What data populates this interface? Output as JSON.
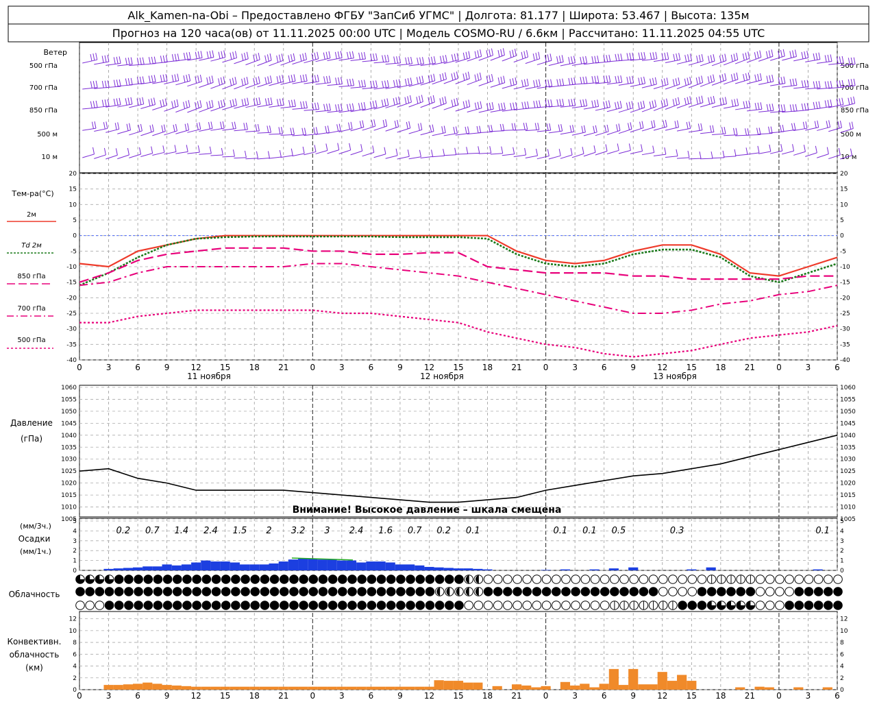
{
  "header": {
    "line1": "Alk_Kamen-na-Obi – Предоставлено ФГБУ \"ЗапСиб УГМС\" | Долгота: 81.177 | Широта: 53.467 | Высота: 135м",
    "line2": "Прогноз на 120 часа(ов) от 11.11.2025 00:00 UTC  | Модель COSMO-RU / 6.6км | Рассчитано: 11.11.2025 04:55 UTC"
  },
  "axis": {
    "hour_labels": [
      "0",
      "3",
      "6",
      "9",
      "12",
      "15",
      "18",
      "21",
      "0",
      "3",
      "6",
      "9",
      "12",
      "15",
      "18",
      "21",
      "0",
      "3",
      "6",
      "9",
      "12",
      "15",
      "18",
      "21",
      "0",
      "3",
      "6"
    ],
    "day_labels": [
      "11 ноября",
      "12 ноября",
      "13 ноября"
    ]
  },
  "wind": {
    "title": "Ветер",
    "level_labels": [
      "500 гПа",
      "700 гПа",
      "850 гПа",
      "500 м",
      "10  м"
    ]
  },
  "temperature": {
    "title": "Тем-ра(°С)",
    "legend": [
      "2м",
      "Td  2м",
      "850 гПа",
      "700 гПа",
      "500 гПа"
    ],
    "tick_labels": [
      "20",
      "15",
      "10",
      "5",
      "0",
      "-5",
      "-10",
      "-15",
      "-20",
      "-25",
      "-30",
      "-35",
      "-40"
    ],
    "colors": {
      "t2m": "#ee3a2a",
      "td2m": "#1a7a1a",
      "t850": "#e8007a",
      "t700": "#e8007a",
      "t500": "#e8007a",
      "zero": "#3355ff"
    }
  },
  "pressure": {
    "title": "Давление",
    "unit": "(гПа)",
    "tick_labels": [
      "1060",
      "1055",
      "1050",
      "1045",
      "1040",
      "1035",
      "1030",
      "1025",
      "1020",
      "1015",
      "1010",
      "1005"
    ],
    "warning": "Внимание! Высокое давление – шкала смещена"
  },
  "precip": {
    "unit3": "(мм/3ч.)",
    "title": "Осадки",
    "unit1": "(мм/1ч.)",
    "tick_labels": [
      "5",
      "4",
      "3",
      "2",
      "1",
      "0"
    ],
    "sum_labels": [
      "0.2",
      "0.7",
      "1.4",
      "2.4",
      "1.5",
      "2",
      "3.2",
      "3",
      "2.4",
      "1.6",
      "0.7",
      "0.2",
      "0.1",
      "0.1",
      "0.1",
      "0.5",
      "0.3",
      "0.1"
    ],
    "colors": {
      "bar": "#1c3fe0",
      "snow": "#22aa22"
    }
  },
  "cloud": {
    "title": "Облачность"
  },
  "convective": {
    "title": [
      "Конвективн.",
      "облачность",
      "(км)"
    ],
    "tick_labels": [
      "12",
      "10",
      "8",
      "6",
      "4",
      "2",
      "0"
    ],
    "color": "#f08a2a"
  },
  "chart_data": [
    {
      "type": "line",
      "title": "Тем-ра(°С)",
      "x_hours": [
        0,
        3,
        6,
        9,
        12,
        15,
        18,
        21,
        24,
        27,
        30,
        33,
        36,
        39,
        42,
        45,
        48,
        51,
        54,
        57,
        60,
        63,
        66,
        69,
        72,
        75,
        78
      ],
      "ylim": [
        -40,
        20
      ],
      "series": [
        {
          "name": "2м",
          "values": [
            -9,
            -10,
            -5,
            -3,
            -1,
            0,
            0,
            0,
            0,
            0,
            0,
            0,
            0,
            0,
            0,
            -5,
            -8,
            -9,
            -8,
            -5,
            -3,
            -3,
            -6,
            -12,
            -13,
            -10,
            -7
          ]
        },
        {
          "name": "Td  2м",
          "values": [
            -16,
            -12,
            -7,
            -3,
            -1,
            -0.5,
            -0.3,
            -0.3,
            -0.3,
            -0.3,
            -0.3,
            -0.5,
            -0.5,
            -0.5,
            -1,
            -6,
            -9,
            -10,
            -9,
            -6,
            -4.5,
            -4.5,
            -7,
            -13,
            -15,
            -12,
            -9
          ]
        },
        {
          "name": "850 гПа",
          "values": [
            -15,
            -12,
            -8,
            -6,
            -5,
            -4,
            -4,
            -4,
            -5,
            -5,
            -6,
            -6,
            -5.5,
            -5.5,
            -10,
            -11,
            -12,
            -12,
            -12,
            -13,
            -13,
            -14,
            -14,
            -14,
            -14,
            -13,
            -13
          ]
        },
        {
          "name": "700 гПа",
          "values": [
            -16,
            -15,
            -12,
            -10,
            -10,
            -10,
            -10,
            -10,
            -9,
            -9,
            -10,
            -11,
            -12,
            -13,
            -15,
            -17,
            -19,
            -21,
            -23,
            -25,
            -25,
            -24,
            -22,
            -21,
            -19,
            -18,
            -16
          ]
        },
        {
          "name": "500 гПа",
          "values": [
            -28,
            -28,
            -26,
            -25,
            -24,
            -24,
            -24,
            -24,
            -24,
            -25,
            -25,
            -26,
            -27,
            -28,
            -31,
            -33,
            -35,
            -36,
            -38,
            -39,
            -38,
            -37,
            -35,
            -33,
            -32,
            -31,
            -29
          ]
        }
      ]
    },
    {
      "type": "line",
      "title": "Давление",
      "x_hours": [
        0,
        3,
        6,
        9,
        12,
        15,
        18,
        21,
        24,
        27,
        30,
        33,
        36,
        39,
        42,
        45,
        48,
        51,
        54,
        57,
        60,
        63,
        66,
        69,
        72,
        75,
        78
      ],
      "ylim": [
        1005,
        1060
      ],
      "series": [
        {
          "name": "Давление",
          "values": [
            1025,
            1026,
            1022,
            1020,
            1017,
            1017,
            1017,
            1017,
            1016,
            1015,
            1014,
            1013,
            1012,
            1012,
            1013,
            1014,
            1017,
            1019,
            1021,
            1023,
            1024,
            1026,
            1028,
            1031,
            1034,
            1037,
            1040
          ]
        }
      ]
    },
    {
      "type": "bar",
      "title": "Осадки",
      "ylim": [
        0,
        5
      ],
      "bars_mm_per_hour": [
        [
          3,
          0.15
        ],
        [
          4,
          0.2
        ],
        [
          5,
          0.25
        ],
        [
          6,
          0.3
        ],
        [
          7,
          0.4
        ],
        [
          8,
          0.4
        ],
        [
          9,
          0.6
        ],
        [
          10,
          0.5
        ],
        [
          11,
          0.6
        ],
        [
          12,
          0.8
        ],
        [
          13,
          1.0
        ],
        [
          14,
          0.9
        ],
        [
          15,
          0.9
        ],
        [
          16,
          0.8
        ],
        [
          17,
          0.6
        ],
        [
          18,
          0.6
        ],
        [
          19,
          0.6
        ],
        [
          20,
          0.7
        ],
        [
          21,
          0.9
        ],
        [
          22,
          1.1
        ],
        [
          23,
          1.2
        ],
        [
          24,
          1.2
        ],
        [
          25,
          1.1
        ],
        [
          26,
          1.1
        ],
        [
          27,
          1.0
        ],
        [
          28,
          1.0
        ],
        [
          29,
          0.8
        ],
        [
          30,
          0.9
        ],
        [
          31,
          0.9
        ],
        [
          32,
          0.8
        ],
        [
          33,
          0.6
        ],
        [
          34,
          0.6
        ],
        [
          35,
          0.5
        ],
        [
          36,
          0.35
        ],
        [
          37,
          0.3
        ],
        [
          38,
          0.25
        ],
        [
          39,
          0.2
        ],
        [
          40,
          0.2
        ],
        [
          41,
          0.15
        ],
        [
          42,
          0.1
        ],
        [
          48,
          0.05
        ],
        [
          50,
          0.1
        ],
        [
          53,
          0.1
        ],
        [
          55,
          0.2
        ],
        [
          57,
          0.3
        ],
        [
          63,
          0.1
        ],
        [
          65,
          0.3
        ],
        [
          76,
          0.1
        ]
      ]
    },
    {
      "type": "bar",
      "title": "Конвективн. облачность (км)",
      "ylim": [
        0,
        13
      ],
      "bars_km": [
        [
          3,
          0.8
        ],
        [
          4,
          0.8
        ],
        [
          5,
          0.9
        ],
        [
          6,
          1.0
        ],
        [
          7,
          1.2
        ],
        [
          8,
          1.0
        ],
        [
          9,
          0.8
        ],
        [
          10,
          0.7
        ],
        [
          11,
          0.6
        ],
        [
          12,
          0.5
        ],
        [
          13,
          0.5
        ],
        [
          14,
          0.5
        ],
        [
          15,
          0.5
        ],
        [
          16,
          0.5
        ],
        [
          17,
          0.5
        ],
        [
          18,
          0.5
        ],
        [
          19,
          0.5
        ],
        [
          20,
          0.5
        ],
        [
          21,
          0.5
        ],
        [
          22,
          0.5
        ],
        [
          23,
          0.5
        ],
        [
          24,
          0.5
        ],
        [
          25,
          0.5
        ],
        [
          26,
          0.5
        ],
        [
          27,
          0.5
        ],
        [
          28,
          0.5
        ],
        [
          29,
          0.5
        ],
        [
          30,
          0.5
        ],
        [
          31,
          0.5
        ],
        [
          32,
          0.5
        ],
        [
          33,
          0.5
        ],
        [
          34,
          0.5
        ],
        [
          35,
          0.5
        ],
        [
          36,
          0.5
        ],
        [
          37,
          1.6
        ],
        [
          38,
          1.5
        ],
        [
          39,
          1.5
        ],
        [
          40,
          1.2
        ],
        [
          41,
          1.2
        ],
        [
          43,
          0.6
        ],
        [
          45,
          0.9
        ],
        [
          46,
          0.7
        ],
        [
          47,
          0.4
        ],
        [
          48,
          0.6
        ],
        [
          50,
          1.3
        ],
        [
          51,
          0.7
        ],
        [
          52,
          1.0
        ],
        [
          53,
          0.4
        ],
        [
          54,
          1.0
        ],
        [
          55,
          3.5
        ],
        [
          56,
          0.8
        ],
        [
          57,
          3.5
        ],
        [
          58,
          0.9
        ],
        [
          59,
          0.9
        ],
        [
          60,
          3.0
        ],
        [
          61,
          1.5
        ],
        [
          62,
          2.5
        ],
        [
          63,
          1.5
        ],
        [
          68,
          0.4
        ],
        [
          70,
          0.5
        ],
        [
          71,
          0.4
        ],
        [
          74,
          0.4
        ],
        [
          77,
          0.4
        ]
      ]
    }
  ]
}
